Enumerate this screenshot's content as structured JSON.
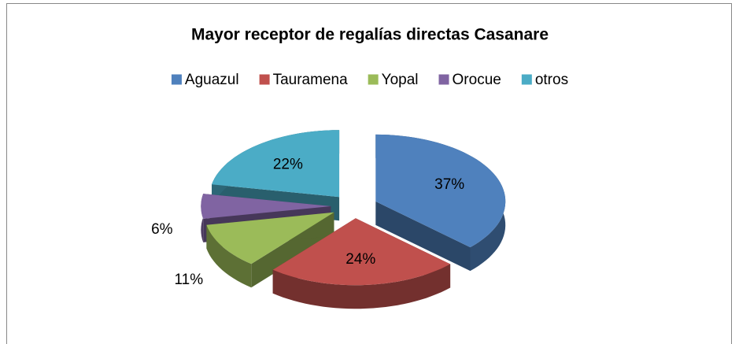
{
  "chart_data": {
    "type": "pie",
    "title": "Mayor receptor de regalías directas Casanare",
    "categories": [
      "Aguazul",
      "Tauramena",
      "Yopal",
      "Orocue",
      "otros"
    ],
    "values": [
      37,
      24,
      11,
      6,
      22
    ],
    "value_labels": [
      "37%",
      "24%",
      "11%",
      "6%",
      "22%"
    ],
    "colors": [
      "#4f81bd",
      "#c0504d",
      "#9bbb59",
      "#8064a2",
      "#4bacc6"
    ],
    "legend": "top"
  }
}
